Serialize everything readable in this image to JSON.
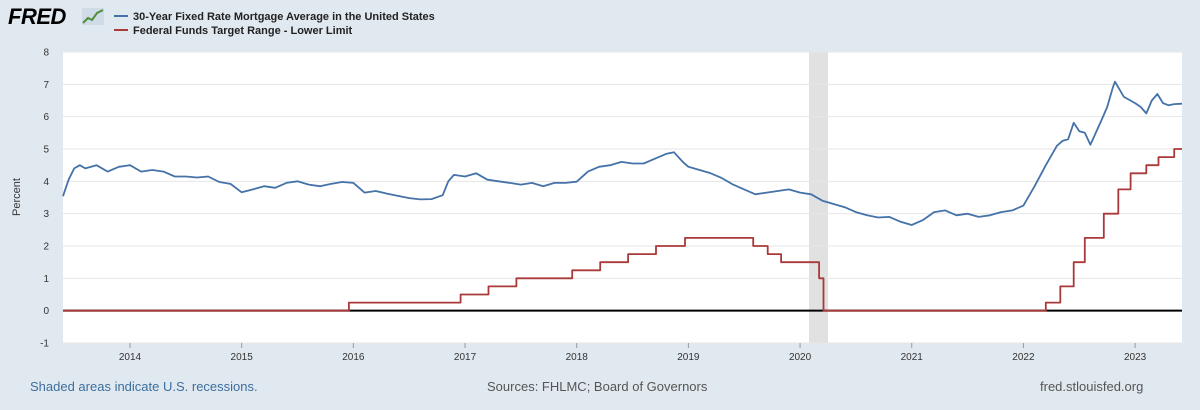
{
  "brand": {
    "logo_text": "FRED"
  },
  "colors": {
    "series1": "#4572a7",
    "series2": "#aa3939",
    "recession": "#e1e1e1",
    "zero": "#000000",
    "grid": "#e6e6e6"
  },
  "footer": {
    "note": "Shaded areas indicate U.S. recessions.",
    "sources": "Sources: FHLMC; Board of Governors",
    "site": "fred.stlouisfed.org"
  },
  "chart_data": {
    "type": "line",
    "ylabel": "Percent",
    "xlim": [
      2013.4,
      2023.42
    ],
    "ylim": [
      -1,
      8
    ],
    "y_ticks": [
      "-1",
      "0",
      "1",
      "2",
      "3",
      "4",
      "5",
      "6",
      "7",
      "8"
    ],
    "x_ticks": [
      "2014",
      "2015",
      "2016",
      "2017",
      "2018",
      "2019",
      "2020",
      "2021",
      "2022",
      "2023"
    ],
    "recession": [
      2020.08,
      2020.25
    ],
    "series": [
      {
        "name": "30-Year Fixed Rate Mortgage Average in the United States",
        "kind": "line",
        "x": [
          2013.4,
          2013.45,
          2013.5,
          2013.55,
          2013.6,
          2013.7,
          2013.8,
          2013.9,
          2014.0,
          2014.1,
          2014.2,
          2014.3,
          2014.4,
          2014.5,
          2014.6,
          2014.7,
          2014.8,
          2014.9,
          2015.0,
          2015.1,
          2015.2,
          2015.3,
          2015.4,
          2015.5,
          2015.6,
          2015.7,
          2015.8,
          2015.9,
          2016.0,
          2016.1,
          2016.2,
          2016.3,
          2016.4,
          2016.5,
          2016.6,
          2016.7,
          2016.8,
          2016.85,
          2016.9,
          2017.0,
          2017.1,
          2017.2,
          2017.3,
          2017.4,
          2017.5,
          2017.6,
          2017.7,
          2017.8,
          2017.9,
          2018.0,
          2018.1,
          2018.2,
          2018.3,
          2018.4,
          2018.5,
          2018.6,
          2018.7,
          2018.8,
          2018.87,
          2018.95,
          2019.0,
          2019.1,
          2019.2,
          2019.3,
          2019.4,
          2019.5,
          2019.6,
          2019.7,
          2019.8,
          2019.9,
          2020.0,
          2020.1,
          2020.2,
          2020.3,
          2020.4,
          2020.5,
          2020.6,
          2020.7,
          2020.8,
          2020.9,
          2021.0,
          2021.1,
          2021.2,
          2021.3,
          2021.4,
          2021.5,
          2021.6,
          2021.7,
          2021.8,
          2021.9,
          2022.0,
          2022.1,
          2022.2,
          2022.3,
          2022.35,
          2022.4,
          2022.45,
          2022.5,
          2022.55,
          2022.6,
          2022.7,
          2022.75,
          2022.8,
          2022.82,
          2022.9,
          2023.0,
          2023.05,
          2023.1,
          2023.15,
          2023.2,
          2023.25,
          2023.3,
          2023.35,
          2023.42
        ],
        "values": [
          3.54,
          4.05,
          4.4,
          4.5,
          4.4,
          4.5,
          4.3,
          4.45,
          4.5,
          4.3,
          4.35,
          4.3,
          4.15,
          4.15,
          4.12,
          4.15,
          3.98,
          3.92,
          3.66,
          3.75,
          3.85,
          3.8,
          3.95,
          4.0,
          3.9,
          3.85,
          3.92,
          3.98,
          3.95,
          3.65,
          3.7,
          3.62,
          3.55,
          3.48,
          3.44,
          3.45,
          3.57,
          4.0,
          4.2,
          4.15,
          4.25,
          4.05,
          4.0,
          3.95,
          3.9,
          3.95,
          3.85,
          3.95,
          3.95,
          3.99,
          4.3,
          4.45,
          4.5,
          4.6,
          4.55,
          4.55,
          4.7,
          4.85,
          4.9,
          4.6,
          4.45,
          4.35,
          4.25,
          4.1,
          3.9,
          3.75,
          3.6,
          3.65,
          3.7,
          3.75,
          3.65,
          3.6,
          3.4,
          3.3,
          3.2,
          3.05,
          2.95,
          2.88,
          2.9,
          2.75,
          2.65,
          2.8,
          3.05,
          3.1,
          2.95,
          3.0,
          2.9,
          2.95,
          3.05,
          3.1,
          3.25,
          3.85,
          4.5,
          5.1,
          5.25,
          5.3,
          5.81,
          5.55,
          5.5,
          5.13,
          5.9,
          6.3,
          6.9,
          7.08,
          6.61,
          6.42,
          6.3,
          6.1,
          6.5,
          6.7,
          6.42,
          6.35,
          6.39,
          6.4
        ],
        "color": "#4572a7"
      },
      {
        "name": "Federal Funds Target Range - Lower Limit",
        "kind": "step",
        "x": [
          2013.4,
          2015.96,
          2016.96,
          2017.21,
          2017.46,
          2017.96,
          2018.21,
          2018.46,
          2018.71,
          2018.97,
          2019.58,
          2019.71,
          2019.83,
          2020.17,
          2020.21,
          2022.2,
          2022.33,
          2022.45,
          2022.55,
          2022.72,
          2022.85,
          2022.96,
          2023.1,
          2023.21,
          2023.35,
          2023.42
        ],
        "values": [
          0,
          0.25,
          0.5,
          0.75,
          1.0,
          1.25,
          1.5,
          1.75,
          2.0,
          2.25,
          2.0,
          1.75,
          1.5,
          1.0,
          0.0,
          0.25,
          0.75,
          1.5,
          2.25,
          3.0,
          3.75,
          4.25,
          4.5,
          4.75,
          5.0,
          5.0
        ],
        "color": "#aa3939"
      }
    ]
  }
}
